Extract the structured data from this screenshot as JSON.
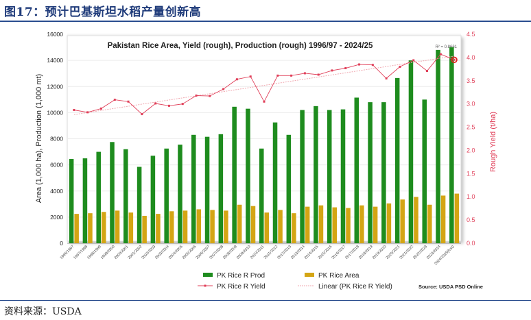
{
  "figure_title": "图17：预计巴基斯坦水稻产量创新高",
  "source_note": "资料来源：USDA",
  "chart_data": {
    "type": "bar",
    "title": "Pakistan Rice Area, Yield (rough), Production (rough) 1996/97 - 2024/25",
    "ylabel": "Area (1,000 ha), Production (1,000 mt)",
    "y2label": "Rough Yield (t/ha)",
    "ylim": [
      0,
      16000
    ],
    "y2lim": [
      0,
      4.5
    ],
    "yticks": [
      "0",
      "2000",
      "4000",
      "6000",
      "8000",
      "10000",
      "12000",
      "14000",
      "16000"
    ],
    "y2ticks": [
      "0.0",
      "0.5",
      "1.0",
      "1.5",
      "2.0",
      "2.5",
      "3.0",
      "3.5",
      "4.0",
      "4.5"
    ],
    "categories": [
      "1996/1997",
      "1997/1998",
      "1998/1999",
      "1999/2000",
      "2000/2001",
      "2001/2002",
      "2002/2003",
      "2003/2004",
      "2004/2005",
      "2005/2006",
      "2006/2007",
      "2007/2008",
      "2008/2009",
      "2009/2010",
      "2010/2011",
      "2011/2012",
      "2012/2013",
      "2013/2014",
      "2014/2015",
      "2015/2016",
      "2016/2017",
      "2017/2018",
      "2018/2019",
      "2019/2020",
      "2020/2021",
      "2021/2022",
      "2022/2023",
      "2023/2024",
      "2024/2025(fcst)"
    ],
    "series": [
      {
        "name": "PK Rice R Prod",
        "type": "bar",
        "color": "#1e8c1e",
        "values": [
          6450,
          6500,
          7000,
          7750,
          7200,
          5850,
          6700,
          7250,
          7550,
          8300,
          8150,
          8350,
          10450,
          10300,
          7250,
          9250,
          8300,
          10200,
          10500,
          10200,
          10250,
          11150,
          10800,
          10800,
          12650,
          14000,
          11000,
          14800,
          15000
        ]
      },
      {
        "name": "PK Rice Area",
        "type": "bar",
        "color": "#d4a514",
        "values": [
          2250,
          2300,
          2400,
          2500,
          2350,
          2100,
          2250,
          2450,
          2500,
          2600,
          2550,
          2500,
          2950,
          2850,
          2350,
          2550,
          2300,
          2800,
          2900,
          2750,
          2700,
          2900,
          2800,
          3050,
          3350,
          3550,
          2950,
          3650,
          3800
        ]
      },
      {
        "name": "PK Rice R Yield",
        "type": "line",
        "axis": "right",
        "color": "#e0405a",
        "values": [
          2.87,
          2.82,
          2.9,
          3.09,
          3.05,
          2.78,
          3.01,
          2.96,
          3.0,
          3.18,
          3.17,
          3.32,
          3.53,
          3.59,
          3.05,
          3.61,
          3.61,
          3.66,
          3.63,
          3.72,
          3.77,
          3.85,
          3.84,
          3.55,
          3.8,
          3.94,
          3.71,
          4.07,
          3.95
        ]
      },
      {
        "name": "Linear (PK Rice R Yield)",
        "type": "trendline",
        "axis": "right",
        "color": "#f0a8b0",
        "start": 2.77,
        "end": 4.03
      }
    ],
    "annotations": {
      "r_squared": "R² = 0.8661",
      "source": "Source: USDA PSD Online"
    },
    "legend": [
      "PK Rice R Prod",
      "PK Rice Area",
      "PK Rice R Yield",
      "Linear (PK Rice R Yield)"
    ]
  }
}
